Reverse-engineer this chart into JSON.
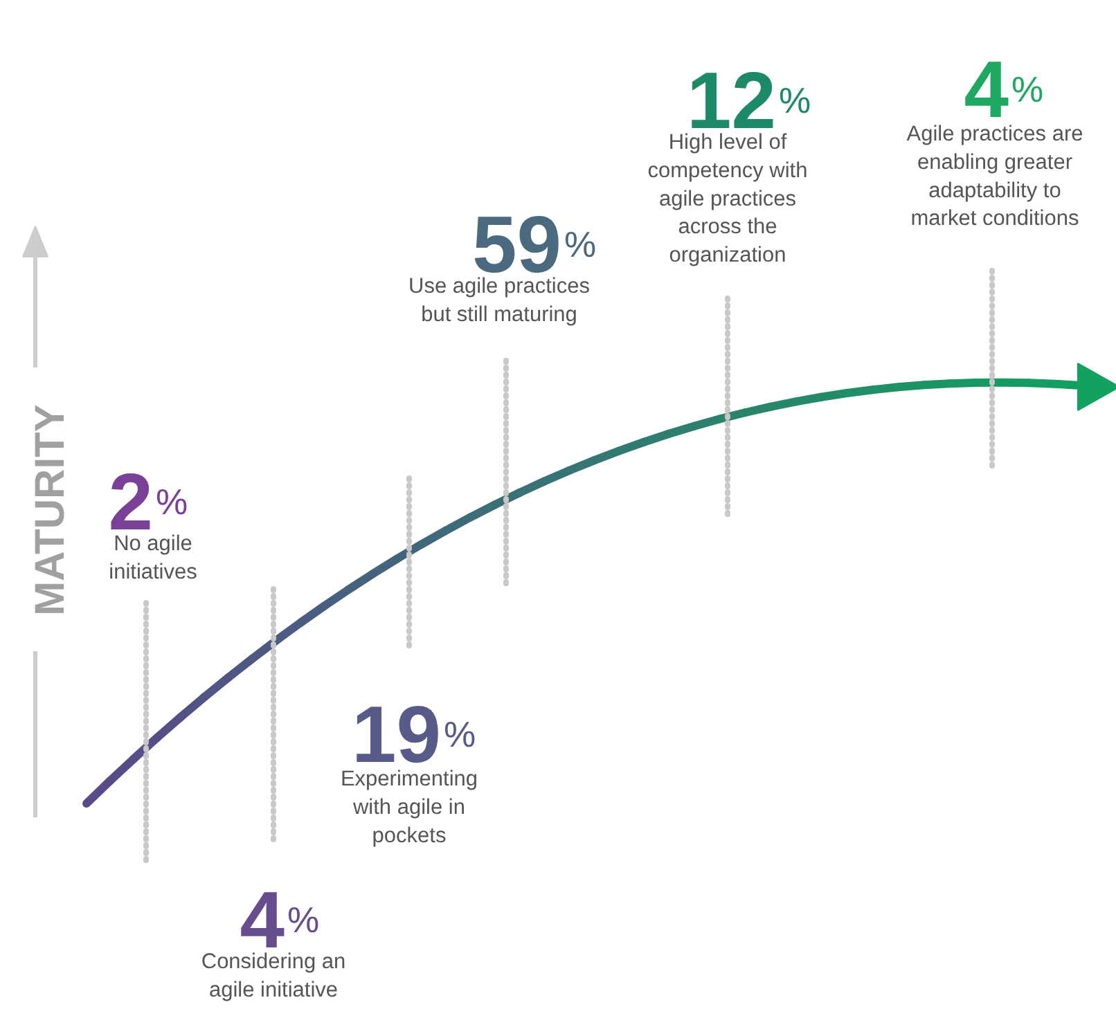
{
  "chart_data": {
    "type": "other",
    "ylabel": "MATURITY",
    "categories": [
      "No agile\ninitiatives",
      "Considering an\nagile initiative",
      "Experimenting\nwith agile in\npockets",
      "Use agile practices\nbut still maturing",
      "High level of\ncompetency with\nagile practices\nacross the\norganization",
      "Agile practices are\nenabling greater\nadaptability to\nmarket conditions"
    ],
    "values": [
      2,
      4,
      19,
      59,
      12,
      4
    ],
    "value_labels": [
      "2%",
      "4%",
      "19%",
      "59%",
      "12%",
      "4%"
    ],
    "colors": [
      "#7a3f97",
      "#674d8e",
      "#585a89",
      "#4b6a80",
      "#1c8a69",
      "#1fa85f"
    ]
  }
}
